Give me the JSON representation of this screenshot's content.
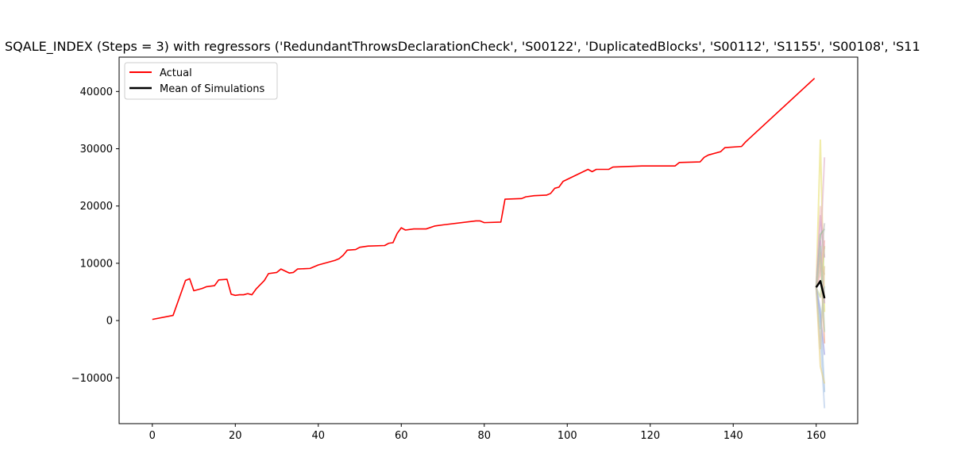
{
  "chart_data": {
    "type": "line",
    "title": "SQALE_INDEX (Steps = 3) with regressors ('RedundantThrowsDeclarationCheck', 'S00122', 'DuplicatedBlocks', 'S00112', 'S1155', 'S00108', 'S11",
    "xlabel": "",
    "ylabel": "",
    "xlim": [
      -8,
      170
    ],
    "ylim": [
      -18000,
      46000
    ],
    "x_ticks": [
      0,
      20,
      40,
      60,
      80,
      100,
      120,
      140,
      160
    ],
    "y_ticks": [
      -10000,
      0,
      10000,
      20000,
      30000,
      40000
    ],
    "grid": false,
    "legend_placement": "upper-left",
    "legend": [
      "Actual",
      "Mean of Simulations"
    ],
    "series": [
      {
        "name": "Actual",
        "color": "#ff0000",
        "points": [
          [
            0,
            200
          ],
          [
            5,
            900
          ],
          [
            8,
            7000
          ],
          [
            9,
            7300
          ],
          [
            10,
            5200
          ],
          [
            12,
            5600
          ],
          [
            13,
            5900
          ],
          [
            15,
            6100
          ],
          [
            16,
            7100
          ],
          [
            18,
            7200
          ],
          [
            19,
            4600
          ],
          [
            20,
            4400
          ],
          [
            21,
            4500
          ],
          [
            22,
            4500
          ],
          [
            23,
            4700
          ],
          [
            24,
            4500
          ],
          [
            25,
            5500
          ],
          [
            27,
            7000
          ],
          [
            28,
            8200
          ],
          [
            30,
            8400
          ],
          [
            31,
            9000
          ],
          [
            33,
            8300
          ],
          [
            34,
            8400
          ],
          [
            35,
            9000
          ],
          [
            38,
            9100
          ],
          [
            40,
            9700
          ],
          [
            42,
            10100
          ],
          [
            44,
            10500
          ],
          [
            45,
            10800
          ],
          [
            46,
            11400
          ],
          [
            47,
            12300
          ],
          [
            49,
            12400
          ],
          [
            50,
            12800
          ],
          [
            52,
            13000
          ],
          [
            56,
            13100
          ],
          [
            57,
            13500
          ],
          [
            58,
            13600
          ],
          [
            59,
            15200
          ],
          [
            60,
            16200
          ],
          [
            61,
            15800
          ],
          [
            63,
            16000
          ],
          [
            66,
            16000
          ],
          [
            68,
            16500
          ],
          [
            70,
            16700
          ],
          [
            78,
            17400
          ],
          [
            79,
            17400
          ],
          [
            80,
            17100
          ],
          [
            84,
            17200
          ],
          [
            85,
            21200
          ],
          [
            89,
            21300
          ],
          [
            90,
            21600
          ],
          [
            92,
            21800
          ],
          [
            95,
            21900
          ],
          [
            96,
            22200
          ],
          [
            97,
            23100
          ],
          [
            98,
            23300
          ],
          [
            99,
            24300
          ],
          [
            105,
            26400
          ],
          [
            106,
            26000
          ],
          [
            107,
            26400
          ],
          [
            110,
            26400
          ],
          [
            111,
            26800
          ],
          [
            118,
            27000
          ],
          [
            126,
            27000
          ],
          [
            127,
            27600
          ],
          [
            132,
            27700
          ],
          [
            133,
            28500
          ],
          [
            134,
            28900
          ],
          [
            137,
            29500
          ],
          [
            138,
            30200
          ],
          [
            142,
            30400
          ],
          [
            143,
            31200
          ],
          [
            159.6,
            42300
          ]
        ]
      },
      {
        "name": "Mean of Simulations",
        "color": "#000000",
        "points": [
          [
            160,
            5800
          ],
          [
            161,
            6900
          ],
          [
            162,
            3900
          ]
        ]
      }
    ],
    "simulation_paths": [
      {
        "color": "#e8e070",
        "values": [
          5800,
          31600,
          1500
        ]
      },
      {
        "color": "#e0b0c8",
        "values": [
          5800,
          12000,
          28500
        ]
      },
      {
        "color": "#c890c8",
        "values": [
          5800,
          18400,
          11000
        ]
      },
      {
        "color": "#f0c0c0",
        "values": [
          5800,
          20000,
          12500
        ]
      },
      {
        "color": "#b0c8e8",
        "values": [
          5800,
          -3000,
          -15300
        ]
      },
      {
        "color": "#a0c0e0",
        "values": [
          5800,
          2000,
          -12500
        ]
      },
      {
        "color": "#e8d080",
        "values": [
          5800,
          -8000,
          -11000
        ]
      },
      {
        "color": "#90c090",
        "values": [
          5800,
          15000,
          16000
        ]
      },
      {
        "color": "#c0c0c0",
        "values": [
          5800,
          9000,
          17000
        ]
      },
      {
        "color": "#f0a080",
        "values": [
          5800,
          12000,
          -4000
        ]
      },
      {
        "color": "#a0d0d0",
        "values": [
          5800,
          -1500,
          6000
        ]
      },
      {
        "color": "#d0a0d0",
        "values": [
          5800,
          14000,
          3000
        ]
      },
      {
        "color": "#c0d090",
        "values": [
          5800,
          4000,
          13000
        ]
      },
      {
        "color": "#e0c0a0",
        "values": [
          5800,
          10000,
          8000
        ]
      },
      {
        "color": "#a0a0e0",
        "values": [
          5800,
          1000,
          -6000
        ]
      },
      {
        "color": "#f0b0b0",
        "values": [
          5800,
          8000,
          14000
        ]
      },
      {
        "color": "#b0d0b0",
        "values": [
          5800,
          13000,
          -2000
        ]
      },
      {
        "color": "#d8c8a0",
        "values": [
          5800,
          -5000,
          9500
        ]
      }
    ]
  }
}
